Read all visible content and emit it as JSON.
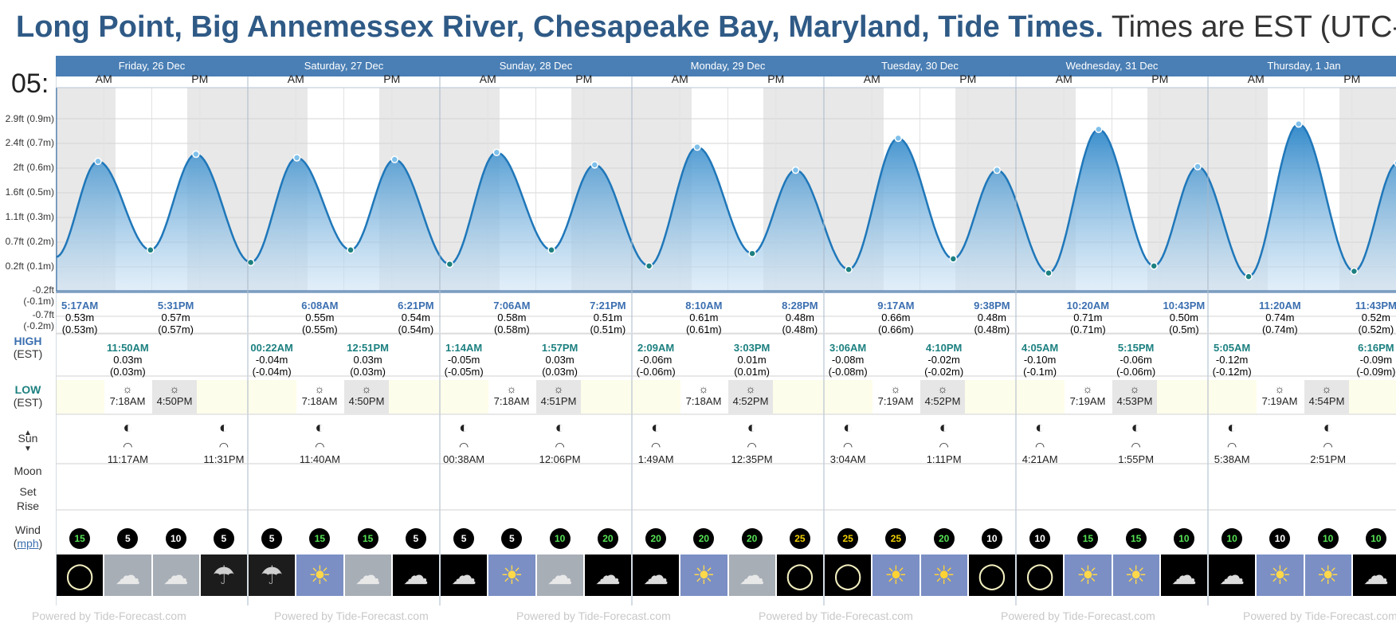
{
  "header": {
    "title_strong": "Long Point, Big Annemessex River, Chesapeake Bay, Maryland, Tide Times.",
    "title_light": "Times are EST (UTC-"
  },
  "axis": {
    "y_labels": [
      "2.9ft (0.9m)",
      "2.4ft (0.7m)",
      "2ft (0.6m)",
      "1.6ft (0.5m)",
      "1.1ft (0.3m)",
      "0.7ft (0.2m)",
      "0.2ft (0.1m)",
      "-0.2ft (-0.1m)",
      "-0.7ft (-0.2m)"
    ],
    "clipped_top": "05:"
  },
  "row_labels": {
    "high": "HIGH",
    "high_tz": "(EST)",
    "low": "LOW",
    "low_tz": "(EST)",
    "sun": "Sun",
    "moon": "Moon",
    "set": "Set",
    "rise": "Rise",
    "wind": "Wind",
    "wind_unit": "mph"
  },
  "ampm": {
    "am": "AM",
    "pm": "PM"
  },
  "days": [
    {
      "label": "Friday, 26 Dec"
    },
    {
      "label": "Saturday, 27 Dec"
    },
    {
      "label": "Sunday, 28 Dec"
    },
    {
      "label": "Monday, 29 Dec"
    },
    {
      "label": "Tuesday, 30 Dec"
    },
    {
      "label": "Wednesday, 31 Dec"
    },
    {
      "label": "Thursday, 1 Jan"
    }
  ],
  "highs": [
    {
      "time": "5:17AM",
      "m": "0.53m",
      "p": "(0.53m)",
      "col": 0
    },
    {
      "time": "5:31PM",
      "m": "0.57m",
      "p": "(0.57m)",
      "col": 2
    },
    {
      "time": "6:08AM",
      "m": "0.55m",
      "p": "(0.55m)",
      "col": 5
    },
    {
      "time": "6:21PM",
      "m": "0.54m",
      "p": "(0.54m)",
      "col": 7
    },
    {
      "time": "7:06AM",
      "m": "0.58m",
      "p": "(0.58m)",
      "col": 9
    },
    {
      "time": "7:21PM",
      "m": "0.51m",
      "p": "(0.51m)",
      "col": 11
    },
    {
      "time": "8:10AM",
      "m": "0.61m",
      "p": "(0.61m)",
      "col": 13
    },
    {
      "time": "8:28PM",
      "m": "0.48m",
      "p": "(0.48m)",
      "col": 15
    },
    {
      "time": "9:17AM",
      "m": "0.66m",
      "p": "(0.66m)",
      "col": 17
    },
    {
      "time": "9:38PM",
      "m": "0.48m",
      "p": "(0.48m)",
      "col": 19
    },
    {
      "time": "10:20AM",
      "m": "0.71m",
      "p": "(0.71m)",
      "col": 21
    },
    {
      "time": "10:43PM",
      "m": "0.50m",
      "p": "(0.5m)",
      "col": 23
    },
    {
      "time": "11:20AM",
      "m": "0.74m",
      "p": "(0.74m)",
      "col": 25
    },
    {
      "time": "11:43PM",
      "m": "0.52m",
      "p": "(0.52m)",
      "col": 27
    }
  ],
  "lows": [
    {
      "time": "11:50AM",
      "m": "0.03m",
      "p": "(0.03m)",
      "col": 1
    },
    {
      "time": "00:22AM",
      "m": "-0.04m",
      "p": "(-0.04m)",
      "col": 4
    },
    {
      "time": "12:51PM",
      "m": "0.03m",
      "p": "(0.03m)",
      "col": 6
    },
    {
      "time": "1:14AM",
      "m": "-0.05m",
      "p": "(-0.05m)",
      "col": 8
    },
    {
      "time": "1:57PM",
      "m": "0.03m",
      "p": "(0.03m)",
      "col": 10
    },
    {
      "time": "2:09AM",
      "m": "-0.06m",
      "p": "(-0.06m)",
      "col": 12
    },
    {
      "time": "3:03PM",
      "m": "0.01m",
      "p": "(0.01m)",
      "col": 14
    },
    {
      "time": "3:06AM",
      "m": "-0.08m",
      "p": "(-0.08m)",
      "col": 16
    },
    {
      "time": "4:10PM",
      "m": "-0.02m",
      "p": "(-0.02m)",
      "col": 18
    },
    {
      "time": "4:05AM",
      "m": "-0.10m",
      "p": "(-0.1m)",
      "col": 20
    },
    {
      "time": "5:15PM",
      "m": "-0.06m",
      "p": "(-0.06m)",
      "col": 22
    },
    {
      "time": "5:05AM",
      "m": "-0.12m",
      "p": "(-0.12m)",
      "col": 24
    },
    {
      "time": "6:16PM",
      "m": "-0.09m",
      "p": "(-0.09m)",
      "col": 27
    }
  ],
  "sun": [
    {
      "rise": "7:18AM",
      "set": "4:50PM"
    },
    {
      "rise": "7:18AM",
      "set": "4:50PM"
    },
    {
      "rise": "7:18AM",
      "set": "4:51PM"
    },
    {
      "rise": "7:18AM",
      "set": "4:52PM"
    },
    {
      "rise": "7:19AM",
      "set": "4:52PM"
    },
    {
      "rise": "7:19AM",
      "set": "4:53PM"
    },
    {
      "rise": "7:19AM",
      "set": "4:54PM"
    }
  ],
  "moon": [
    {
      "time": "11:17AM",
      "col": 1
    },
    {
      "time": "11:31PM",
      "col": 3
    },
    {
      "time": "11:40AM",
      "col": 5
    },
    {
      "time": "00:38AM",
      "col": 8
    },
    {
      "time": "12:06PM",
      "col": 10
    },
    {
      "time": "1:49AM",
      "col": 12
    },
    {
      "time": "12:35PM",
      "col": 14
    },
    {
      "time": "3:04AM",
      "col": 16
    },
    {
      "time": "1:11PM",
      "col": 18
    },
    {
      "time": "4:21AM",
      "col": 20
    },
    {
      "time": "1:55PM",
      "col": 22
    },
    {
      "time": "5:38AM",
      "col": 24
    },
    {
      "time": "2:51PM",
      "col": 26
    }
  ],
  "wind": [
    {
      "v": "15",
      "c": "g"
    },
    {
      "v": "5",
      "c": "w"
    },
    {
      "v": "10",
      "c": "w"
    },
    {
      "v": "5",
      "c": "w"
    },
    {
      "v": "5",
      "c": "w"
    },
    {
      "v": "15",
      "c": "g"
    },
    {
      "v": "15",
      "c": "g"
    },
    {
      "v": "5",
      "c": "w"
    },
    {
      "v": "5",
      "c": "w"
    },
    {
      "v": "5",
      "c": "w"
    },
    {
      "v": "10",
      "c": "g"
    },
    {
      "v": "20",
      "c": "g"
    },
    {
      "v": "20",
      "c": "g"
    },
    {
      "v": "20",
      "c": "g"
    },
    {
      "v": "20",
      "c": "g"
    },
    {
      "v": "25",
      "c": "y"
    },
    {
      "v": "25",
      "c": "y"
    },
    {
      "v": "25",
      "c": "y"
    },
    {
      "v": "20",
      "c": "g"
    },
    {
      "v": "10",
      "c": "w"
    },
    {
      "v": "10",
      "c": "w"
    },
    {
      "v": "15",
      "c": "g"
    },
    {
      "v": "15",
      "c": "g"
    },
    {
      "v": "10",
      "c": "g"
    },
    {
      "v": "10",
      "c": "g"
    },
    {
      "v": "10",
      "c": "w"
    },
    {
      "v": "10",
      "c": "g"
    },
    {
      "v": "10",
      "c": "g"
    }
  ],
  "weather": [
    "moon-clear",
    "cloudy",
    "cloudy",
    "rain-night",
    "rain-night",
    "sun-cloud",
    "cloudy",
    "moon-cloud",
    "moon-cloud",
    "sun-cloud",
    "cloudy",
    "moon-cloud",
    "moon-cloud",
    "sun-cloud",
    "cloudy",
    "moon-clear",
    "moon-clear",
    "sun",
    "sun",
    "moon-clear",
    "moon-clear",
    "sun-cloud",
    "sun-cloud",
    "moon-cloud",
    "moon-cloud",
    "sun-cloud",
    "sun-cloud",
    "moon-cloud"
  ],
  "footer": {
    "text": "Powered by Tide-Forecast.com"
  },
  "colors": {
    "header_blue": "#4a7fb5",
    "tide_fill": "#2a85c8",
    "bg_gray": "#e8e8e8",
    "sun_row": "#fdfdeb"
  }
}
